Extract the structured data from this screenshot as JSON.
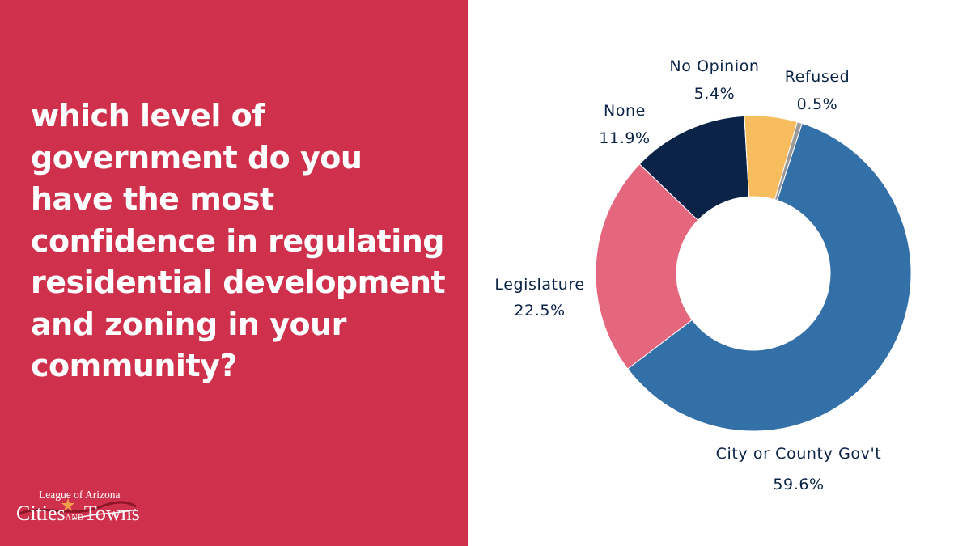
{
  "question": "which level of government do you have the most confidence in regulating residential development and zoning in your community?",
  "logo": {
    "top_line": "League of Arizona",
    "word1": "Cities",
    "and": "AND",
    "word2": "Towns"
  },
  "colors": {
    "panel": "#cf304b",
    "label_text": "#0b2346"
  },
  "chart_data": {
    "type": "pie",
    "donut": true,
    "title": "",
    "slices": [
      {
        "label": "City or County Gov't",
        "value": 59.6,
        "display": "59.6%",
        "color": "#3470a8"
      },
      {
        "label": "Legislature",
        "value": 22.5,
        "display": "22.5%",
        "color": "#e5677e"
      },
      {
        "label": "None",
        "value": 11.9,
        "display": "11.9%",
        "color": "#0b2346"
      },
      {
        "label": "No Opinion",
        "value": 5.4,
        "display": "5.4%",
        "color": "#f7bc5e"
      },
      {
        "label": "Refused",
        "value": 0.5,
        "display": "0.5%",
        "color": "#9b9b9b"
      }
    ],
    "legend": "none"
  }
}
